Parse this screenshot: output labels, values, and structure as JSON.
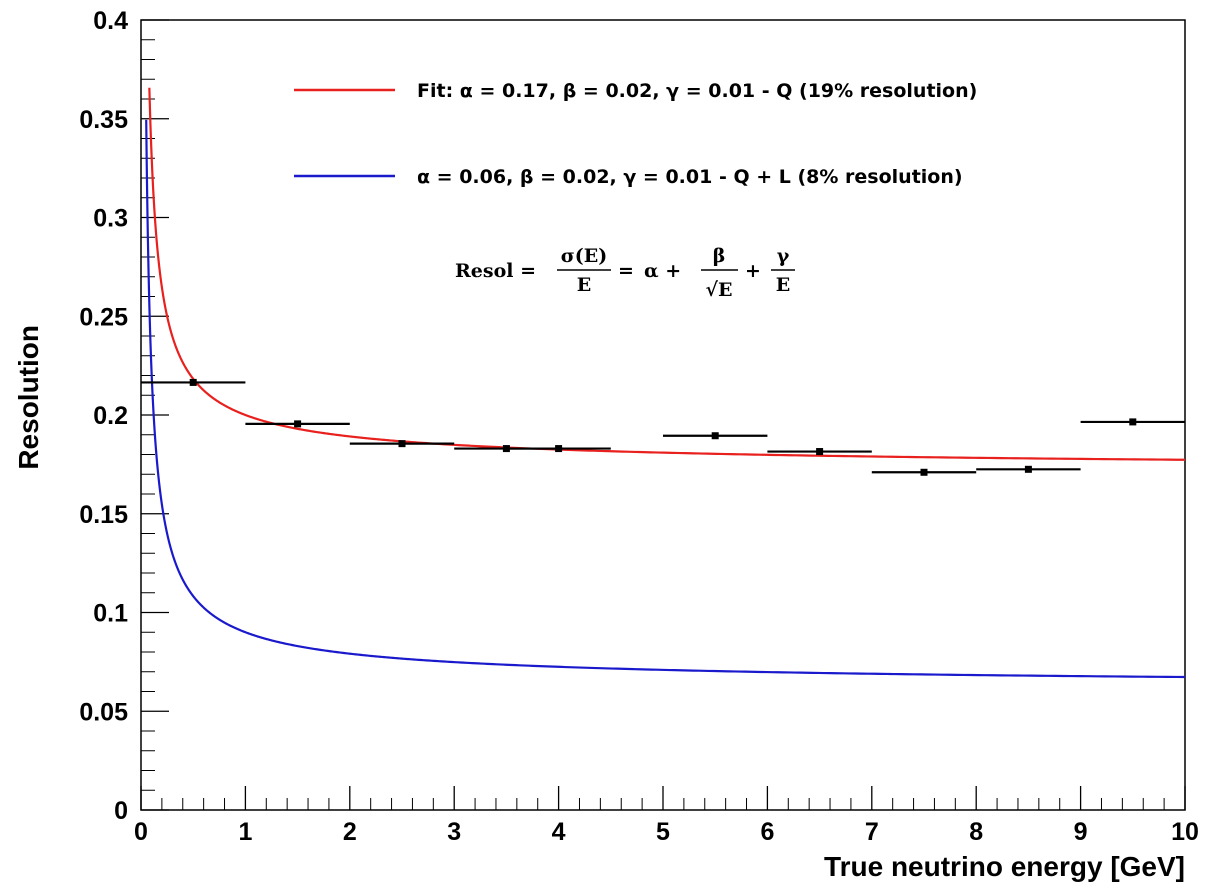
{
  "chart_data": {
    "type": "line",
    "xlabel": "True neutrino energy [GeV]",
    "ylabel": "Resolution",
    "xlim": [
      0,
      10
    ],
    "ylim": [
      0,
      0.4
    ],
    "xticks": [
      0,
      1,
      2,
      3,
      4,
      5,
      6,
      7,
      8,
      9,
      10
    ],
    "yticks": [
      0,
      0.05,
      0.1,
      0.15,
      0.2,
      0.25,
      0.3,
      0.35,
      0.4
    ],
    "xtick_labels": [
      "0",
      "1",
      "2",
      "3",
      "4",
      "5",
      "6",
      "7",
      "8",
      "9",
      "10"
    ],
    "ytick_labels": [
      "0",
      "0.05",
      "0.1",
      "0.15",
      "0.2",
      "0.25",
      "0.3",
      "0.35",
      "0.4"
    ],
    "grid": false,
    "legend_position": "top",
    "series": [
      {
        "kind": "curve",
        "color": "#e8201e",
        "label": "Fit: α = 0.17, β = 0.02, γ = 0.01 - Q (19% resolution)",
        "alpha": 0.17,
        "beta": 0.02,
        "gamma": 0.01,
        "x_range": [
          0.08,
          10
        ]
      },
      {
        "kind": "curve",
        "color": "#1a1acc",
        "label": "α = 0.06, β = 0.02, γ = 0.01 - Q + L (8% resolution)",
        "alpha": 0.06,
        "beta": 0.02,
        "gamma": 0.01,
        "x_range": [
          0.05,
          10
        ]
      },
      {
        "kind": "points",
        "color": "#000000",
        "points": [
          {
            "x": 0.5,
            "y": 0.2165,
            "xerr": 0.5
          },
          {
            "x": 1.5,
            "y": 0.1955,
            "xerr": 0.5
          },
          {
            "x": 2.5,
            "y": 0.1855,
            "xerr": 0.5
          },
          {
            "x": 3.5,
            "y": 0.183,
            "xerr": 0.5
          },
          {
            "x": 4.0,
            "y": 0.183,
            "xerr": 0.5
          },
          {
            "x": 5.5,
            "y": 0.1895,
            "xerr": 0.5
          },
          {
            "x": 6.5,
            "y": 0.1815,
            "xerr": 0.5
          },
          {
            "x": 7.5,
            "y": 0.171,
            "xerr": 0.5
          },
          {
            "x": 8.5,
            "y": 0.1725,
            "xerr": 0.5
          },
          {
            "x": 9.5,
            "y": 0.1965,
            "xerr": 0.5
          }
        ]
      }
    ],
    "formula": {
      "lhs": "Resol =",
      "sigma_num": "σ(E)",
      "den": "E",
      "eq": "=",
      "alpha_plus": "α +",
      "beta": "β",
      "sqrt_den": "√E",
      "plus": "+",
      "gamma": "γ"
    }
  }
}
